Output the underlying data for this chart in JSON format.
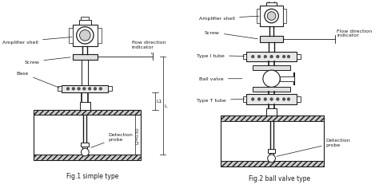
{
  "bg_color": "#ffffff",
  "line_color": "#1a1a1a",
  "fig1_caption": "Fig.1 simple type",
  "fig2_caption": "Fig.2 ball valve type",
  "labels_fig1": {
    "amplifier_shell": "Amplifier shell",
    "screw": "Screw",
    "base": "Base",
    "detection_probe": "Detection\nprobe",
    "flow_direction": "flow direction\nindicator",
    "L1": "L1",
    "L2": "L2 = 0.5D"
  },
  "labels_fig2": {
    "amplifier_shell": "Amplifier shell",
    "screw": "Screw",
    "type_i_tube": "Type I tube",
    "ball_valve": "Ball valve",
    "type_t_tube": "Type T tube",
    "detection_probe": "Detection\nprobe",
    "flow_direction": "Flow direction\nindicator"
  }
}
